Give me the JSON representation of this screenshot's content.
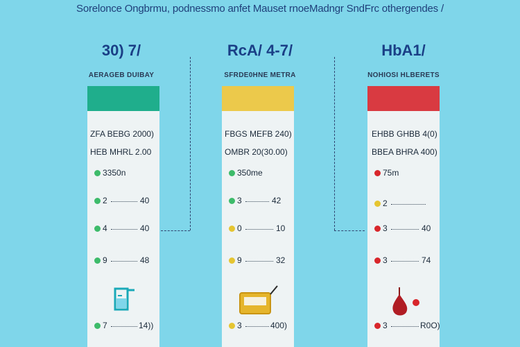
{
  "header": "Sorelonce Ongbrmu, podnessmo anfet  Mauset rnoeMadngr SndFrc othergendes /",
  "columns": [
    {
      "title": "30) 7/",
      "subtitle": "AERAGEB DUIBAY",
      "band_color": "#1fae8c",
      "line1": "ZFA BEBG 2000)",
      "line2": "HEB MHRL 2.00",
      "rows": [
        {
          "label": "3350n",
          "value": "",
          "dot": "#3dbb6a"
        },
        {
          "label": "2",
          "value": "40",
          "dot": "#3dbb6a"
        },
        {
          "label": "4",
          "value": "40",
          "dot": "#3dbb6a"
        },
        {
          "label": "9",
          "value": "48",
          "dot": "#3dbb6a"
        }
      ],
      "icon": "beaker-icon",
      "bottom_row": {
        "label": "7",
        "value": "14))",
        "dot": "#3dbb6a"
      }
    },
    {
      "title": "RcA/ 4-7/",
      "subtitle": "SFRDE0HNE METRA",
      "band_color": "#ecc94b",
      "line1": "FBGS MEFB 240)",
      "line2": "OMBR 20(30.00)",
      "rows": [
        {
          "label": "350me",
          "value": "",
          "dot": "#3dbb6a"
        },
        {
          "label": "3",
          "value": "42",
          "dot": "#3dbb6a"
        },
        {
          "label": "0",
          "value": "10",
          "dot": "#e5c531"
        },
        {
          "label": "9",
          "value": "32",
          "dot": "#e5c531"
        }
      ],
      "icon": "tray-icon",
      "bottom_row": {
        "label": "3",
        "value": "400)",
        "dot": "#e5c531"
      }
    },
    {
      "title": "HbA1/",
      "subtitle": "NOHIOSI HLBERETS",
      "band_color": "#d93a41",
      "line1": "EHBB GHBB 4(0)",
      "line2": "BBEA BHRA 400)",
      "rows": [
        {
          "label": "75m",
          "value": "",
          "dot": "#d8262b"
        },
        {
          "label": "2",
          "value": "",
          "dot": "#e5c531"
        },
        {
          "label": "3",
          "value": "40",
          "dot": "#d8262b"
        },
        {
          "label": "3",
          "value": "74",
          "dot": "#d8262b"
        }
      ],
      "icon": "blood-drop-icon",
      "bottom_row": {
        "label": "3",
        "value": "R0O)",
        "dot": "#d8262b"
      }
    }
  ]
}
